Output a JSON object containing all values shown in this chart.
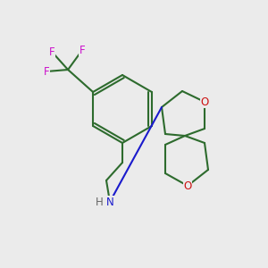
{
  "background_color": "#ebebeb",
  "bond_color": "#2d6b2d",
  "bond_lw": 1.5,
  "n_color": "#1a1acc",
  "o_color": "#cc1111",
  "f_color": "#cc11cc",
  "h_color": "#666666",
  "text_fontsize": 8.5,
  "figsize": [
    3.0,
    3.0
  ],
  "dpi": 100,
  "xlim": [
    0,
    300
  ],
  "ylim": [
    0,
    300
  ]
}
